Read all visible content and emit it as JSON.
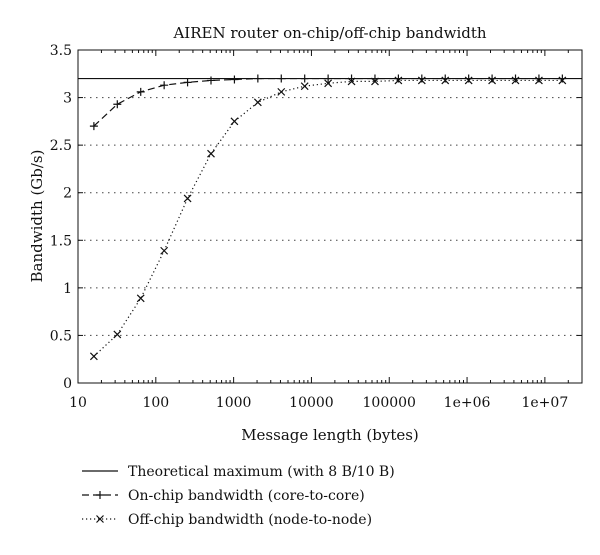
{
  "chart_data": {
    "type": "line",
    "title": "AIREN router on-chip/off-chip bandwidth",
    "xlabel": "Message length (bytes)",
    "ylabel": "Bandwidth (Gb/s)",
    "xscale": "log",
    "xlim": [
      10,
      30000000
    ],
    "ylim": [
      0,
      3.5
    ],
    "grid": "horizontal dotted",
    "legend_position": "bottom",
    "x_ticks": [
      {
        "value": 10,
        "label": "10"
      },
      {
        "value": 100,
        "label": "100"
      },
      {
        "value": 1000,
        "label": "1000"
      },
      {
        "value": 10000,
        "label": "10000"
      },
      {
        "value": 100000,
        "label": "100000"
      },
      {
        "value": 1000000,
        "label": "1e+06"
      },
      {
        "value": 10000000,
        "label": "1e+07"
      }
    ],
    "y_ticks": [
      {
        "value": 0,
        "label": "0"
      },
      {
        "value": 0.5,
        "label": "0.5"
      },
      {
        "value": 1,
        "label": "1"
      },
      {
        "value": 1.5,
        "label": "1.5"
      },
      {
        "value": 2,
        "label": "2"
      },
      {
        "value": 2.5,
        "label": "2.5"
      },
      {
        "value": 3,
        "label": "3"
      },
      {
        "value": 3.5,
        "label": "3.5"
      }
    ],
    "x": [
      16,
      32,
      64,
      128,
      256,
      512,
      1024,
      2048,
      4096,
      8192,
      16384,
      32768,
      65536,
      131072,
      262144,
      524288,
      1048576,
      2097152,
      4194304,
      8388608,
      16777216
    ],
    "series": [
      {
        "name": "Theoretical maximum (with 8 B/10 B)",
        "style": "solid",
        "marker": "none",
        "constant": 3.2
      },
      {
        "name": "On-chip bandwidth (core-to-core)",
        "style": "dashed",
        "marker": "plus",
        "values": [
          2.7,
          2.93,
          3.06,
          3.13,
          3.16,
          3.18,
          3.19,
          3.2,
          3.2,
          3.2,
          3.2,
          3.2,
          3.2,
          3.2,
          3.2,
          3.2,
          3.2,
          3.2,
          3.2,
          3.2,
          3.2
        ]
      },
      {
        "name": "Off-chip bandwidth (node-to-node)",
        "style": "dotted",
        "marker": "cross",
        "values": [
          0.28,
          0.51,
          0.89,
          1.39,
          1.94,
          2.41,
          2.75,
          2.95,
          3.06,
          3.12,
          3.15,
          3.17,
          3.17,
          3.18,
          3.18,
          3.18,
          3.18,
          3.18,
          3.18,
          3.18,
          3.18
        ]
      }
    ],
    "colors": {
      "line": "#111111",
      "grid": "#444444",
      "background": "#ffffff"
    }
  }
}
